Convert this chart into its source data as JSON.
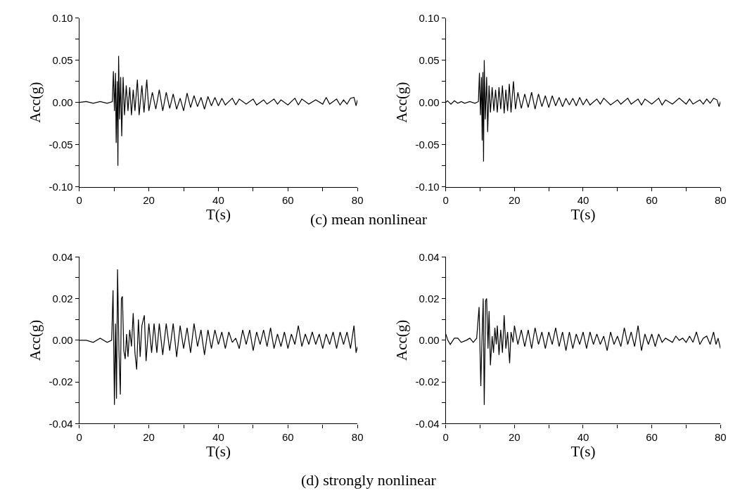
{
  "chart_data": [
    {
      "type": "line",
      "xlabel": "T(s)",
      "ylabel": "Acc(g)",
      "annotations": [
        "(c) mean nonlinear"
      ],
      "xlim": [
        0,
        80
      ],
      "ylim": [
        -0.1,
        0.1
      ],
      "marker": "none",
      "line_style": "solid",
      "xticks": [
        0,
        {
          "value": 10,
          "label": null
        },
        20,
        {
          "value": 30,
          "label": null
        },
        40,
        {
          "value": 50,
          "label": null
        },
        60,
        {
          "value": 70,
          "label": null
        },
        80
      ],
      "yticks": [
        {
          "value": -0.1,
          "label": "-0.10"
        },
        {
          "value": -0.075,
          "label": null
        },
        {
          "value": -0.05,
          "label": "-0.05"
        },
        {
          "value": -0.025,
          "label": null
        },
        {
          "value": 0,
          "label": "0.00"
        },
        {
          "value": 0.025,
          "label": null
        },
        {
          "value": 0.05,
          "label": "0.05"
        },
        {
          "value": 0.075,
          "label": null
        },
        {
          "value": 0.1,
          "label": "0.10"
        }
      ],
      "series": [
        {
          "color": "#000000",
          "x": [
            0,
            2,
            4,
            6,
            8,
            9.5,
            9.8,
            10.1,
            10.4,
            10.6,
            10.9,
            11.1,
            11.3,
            11.6,
            11.9,
            12.2,
            12.6,
            13,
            13.5,
            14,
            14.5,
            15,
            15.5,
            16,
            16.7,
            17.2,
            18,
            18.6,
            19.4,
            20,
            21,
            22,
            23,
            24,
            25,
            26,
            27,
            28,
            29,
            30,
            31,
            32,
            33,
            34,
            35,
            36,
            37,
            38,
            39,
            40,
            41,
            42,
            44,
            45,
            46,
            48,
            50,
            51,
            53,
            54,
            56,
            57,
            58,
            60,
            62,
            63,
            64,
            66,
            68,
            70,
            71,
            72,
            74,
            75,
            76,
            77,
            78,
            79,
            79.6,
            80
          ],
          "values": [
            0,
            0.001,
            -0.001,
            0.001,
            -0.001,
            0.001,
            0.037,
            -0.01,
            0.035,
            -0.048,
            0.025,
            -0.075,
            0.055,
            -0.02,
            0.03,
            -0.04,
            0.03,
            -0.015,
            0.02,
            -0.01,
            0.018,
            -0.015,
            0.015,
            -0.01,
            0.027,
            -0.015,
            0.02,
            -0.012,
            0.027,
            -0.01,
            0.012,
            -0.008,
            0.015,
            -0.01,
            0.012,
            -0.007,
            0.01,
            -0.008,
            0.005,
            -0.01,
            0.011,
            -0.006,
            0.008,
            -0.005,
            0.006,
            -0.008,
            0.007,
            -0.004,
            0.006,
            -0.004,
            0.005,
            -0.003,
            0.005,
            -0.003,
            0.004,
            -0.002,
            0.004,
            -0.003,
            0.003,
            -0.002,
            0.004,
            -0.002,
            0.003,
            -0.003,
            0.005,
            -0.003,
            0.004,
            -0.002,
            0.003,
            -0.002,
            0.006,
            -0.002,
            0.004,
            -0.003,
            0.003,
            -0.002,
            0.005,
            0.006,
            -0.004,
            0.003
          ]
        }
      ]
    },
    {
      "type": "line",
      "xlabel": "T(s)",
      "ylabel": "Acc(g)",
      "xlim": [
        0,
        80
      ],
      "ylim": [
        -0.1,
        0.1
      ],
      "marker": "none",
      "line_style": "solid",
      "xticks": [
        0,
        {
          "value": 10,
          "label": null
        },
        20,
        {
          "value": 30,
          "label": null
        },
        40,
        {
          "value": 50,
          "label": null
        },
        60,
        {
          "value": 70,
          "label": null
        },
        80
      ],
      "yticks": [
        {
          "value": -0.1,
          "label": "-0.10"
        },
        {
          "value": -0.075,
          "label": null
        },
        {
          "value": -0.05,
          "label": "-0.05"
        },
        {
          "value": -0.025,
          "label": null
        },
        {
          "value": 0,
          "label": "0.00"
        },
        {
          "value": 0.025,
          "label": null
        },
        {
          "value": 0.05,
          "label": "0.05"
        },
        {
          "value": 0.075,
          "label": null
        },
        {
          "value": 0.1,
          "label": "0.10"
        }
      ],
      "series": [
        {
          "color": "#000000",
          "x": [
            0,
            0.5,
            1.5,
            2.5,
            3.5,
            4.5,
            5.5,
            7,
            8.5,
            9.5,
            9.8,
            10.1,
            10.4,
            10.6,
            10.8,
            11,
            11.2,
            11.5,
            11.9,
            12.2,
            12.6,
            13,
            13.5,
            14,
            14.5,
            15,
            15.5,
            16,
            16.5,
            17,
            17.5,
            18,
            18.5,
            19,
            19.7,
            20.3,
            21,
            22,
            23,
            24,
            25,
            26,
            27,
            28,
            29,
            30,
            31,
            32,
            33,
            34,
            35,
            36,
            37,
            38,
            39,
            40,
            41,
            42,
            44,
            45,
            46,
            48,
            50,
            51,
            53,
            54,
            56,
            57,
            58,
            60,
            62,
            63,
            64,
            66,
            68,
            70,
            71,
            72,
            74,
            75,
            76,
            77,
            78,
            79,
            79.6,
            80
          ],
          "values": [
            0,
            0.002,
            -0.002,
            0.002,
            -0.001,
            0.001,
            -0.001,
            0.001,
            -0.001,
            0.001,
            0.035,
            -0.015,
            0.03,
            -0.045,
            0.036,
            -0.07,
            0.05,
            -0.02,
            0.03,
            -0.035,
            0.02,
            -0.012,
            0.018,
            -0.01,
            0.015,
            -0.012,
            0.018,
            -0.008,
            0.02,
            -0.013,
            0.015,
            -0.01,
            0.022,
            -0.012,
            0.025,
            -0.008,
            0.012,
            -0.007,
            0.01,
            -0.006,
            0.012,
            -0.008,
            0.01,
            -0.005,
            0.008,
            -0.006,
            0.008,
            -0.004,
            0.006,
            -0.005,
            0.005,
            -0.003,
            0.005,
            -0.004,
            0.006,
            -0.003,
            0.004,
            -0.003,
            0.004,
            -0.002,
            0.005,
            -0.003,
            0.003,
            -0.002,
            0.005,
            -0.002,
            0.004,
            -0.003,
            0.004,
            -0.002,
            0.005,
            -0.003,
            0.003,
            -0.002,
            0.005,
            -0.002,
            0.004,
            -0.002,
            0.003,
            -0.002,
            0.004,
            -0.001,
            0.005,
            0.003,
            -0.005,
            0.001
          ]
        }
      ]
    },
    {
      "type": "line",
      "xlabel": "T(s)",
      "ylabel": "Acc(g)",
      "annotations": [
        "(d) strongly nonlinear"
      ],
      "xlim": [
        0,
        80
      ],
      "ylim": [
        -0.04,
        0.04
      ],
      "marker": "none",
      "line_style": "solid",
      "xticks": [
        0,
        {
          "value": 10,
          "label": null
        },
        20,
        {
          "value": 30,
          "label": null
        },
        40,
        {
          "value": 50,
          "label": null
        },
        60,
        {
          "value": 70,
          "label": null
        },
        80
      ],
      "yticks": [
        {
          "value": -0.04,
          "label": "-0.04"
        },
        {
          "value": -0.03,
          "label": null
        },
        {
          "value": -0.02,
          "label": "-0.02"
        },
        {
          "value": -0.01,
          "label": null
        },
        {
          "value": 0,
          "label": "0.00"
        },
        {
          "value": 0.01,
          "label": null
        },
        {
          "value": 0.02,
          "label": "0.02"
        },
        {
          "value": 0.03,
          "label": null
        },
        {
          "value": 0.04,
          "label": "0.04"
        }
      ],
      "series": [
        {
          "color": "#000000",
          "x": [
            0,
            2,
            4,
            6,
            8,
            9.3,
            9.7,
            10.1,
            10.4,
            10.7,
            11,
            11.4,
            11.8,
            12.1,
            12.4,
            12.8,
            13.2,
            13.6,
            14,
            14.5,
            15,
            15.5,
            16,
            16.5,
            17,
            17.5,
            18,
            18.7,
            19.2,
            20,
            20.8,
            21.5,
            22.3,
            23,
            24,
            25,
            26,
            27,
            28,
            29,
            30,
            31,
            32,
            33,
            34,
            35,
            36,
            37,
            38,
            39,
            40,
            41,
            42,
            43,
            44,
            45,
            46,
            47,
            48,
            49,
            50,
            51,
            52,
            53,
            54,
            55,
            56,
            57,
            58,
            59,
            60,
            61,
            62,
            63,
            64,
            65,
            66,
            67,
            68,
            69,
            70,
            71,
            72,
            73,
            74,
            75,
            76,
            77,
            78,
            79,
            79.6,
            80
          ],
          "values": [
            0,
            0,
            -0.001,
            0.001,
            -0.001,
            0,
            0.024,
            -0.031,
            0.008,
            -0.028,
            0.034,
            -0.005,
            -0.026,
            0.02,
            0.021,
            -0.005,
            -0.009,
            0.003,
            -0.008,
            0.005,
            -0.003,
            0.013,
            -0.006,
            -0.014,
            0.01,
            -0.008,
            0.007,
            0.012,
            -0.01,
            0.008,
            -0.006,
            0.008,
            -0.006,
            0.008,
            -0.007,
            0.008,
            -0.005,
            0.008,
            -0.008,
            0.007,
            -0.004,
            0.006,
            -0.006,
            0.008,
            -0.003,
            0.005,
            -0.007,
            0.005,
            -0.004,
            0.005,
            -0.002,
            0.004,
            -0.004,
            0.004,
            -0.001,
            0.001,
            -0.004,
            0.005,
            -0.002,
            0.005,
            -0.005,
            0.004,
            -0.002,
            0.005,
            -0.003,
            0.006,
            -0.004,
            0.003,
            -0.003,
            0.004,
            -0.004,
            0.003,
            -0.002,
            0.007,
            -0.003,
            0.003,
            -0.002,
            0.004,
            -0.002,
            0.003,
            -0.004,
            0.003,
            -0.002,
            0.004,
            -0.004,
            0.004,
            -0.002,
            0.004,
            -0.004,
            0.007,
            -0.006,
            -0.003
          ]
        }
      ]
    },
    {
      "type": "line",
      "xlabel": "T(s)",
      "ylabel": "Acc(g)",
      "xlim": [
        0,
        80
      ],
      "ylim": [
        -0.04,
        0.04
      ],
      "marker": "none",
      "line_style": "solid",
      "xticks": [
        0,
        {
          "value": 10,
          "label": null
        },
        20,
        {
          "value": 30,
          "label": null
        },
        40,
        {
          "value": 50,
          "label": null
        },
        60,
        {
          "value": 70,
          "label": null
        },
        80
      ],
      "yticks": [
        {
          "value": -0.04,
          "label": "-0.04"
        },
        {
          "value": -0.03,
          "label": null
        },
        {
          "value": -0.02,
          "label": "-0.02"
        },
        {
          "value": -0.01,
          "label": null
        },
        {
          "value": 0,
          "label": "0.00"
        },
        {
          "value": 0.01,
          "label": null
        },
        {
          "value": 0.02,
          "label": "0.02"
        },
        {
          "value": 0.03,
          "label": null
        },
        {
          "value": 0.04,
          "label": "0.04"
        }
      ],
      "series": [
        {
          "color": "#000000",
          "x": [
            0,
            0.6,
            1.3,
            2.5,
            3.5,
            4.5,
            6,
            7,
            8,
            9,
            9.7,
            10.2,
            10.5,
            10.9,
            11.2,
            11.6,
            11.9,
            12.3,
            12.6,
            13,
            13.5,
            13.9,
            14.3,
            14.7,
            15,
            15.5,
            16,
            16.5,
            17,
            17.5,
            18,
            18.6,
            19,
            19.6,
            20,
            21,
            22,
            23,
            24,
            25,
            26,
            27,
            28,
            29,
            30,
            31,
            32,
            33,
            34,
            35,
            36,
            37,
            38,
            39,
            40,
            41,
            42,
            43,
            44,
            45,
            46,
            47,
            48,
            49,
            50,
            51,
            52,
            53,
            54,
            55,
            56,
            57,
            58,
            59,
            60,
            61,
            62,
            63,
            64,
            66,
            67,
            68,
            69,
            70,
            71,
            72,
            73,
            74,
            75,
            76,
            77,
            78,
            78.7,
            79.3,
            80
          ],
          "values": [
            0.003,
            0,
            -0.002,
            0.001,
            0.001,
            -0.001,
            0,
            0.001,
            -0.001,
            0.001,
            0.016,
            -0.022,
            -0.002,
            0.02,
            -0.031,
            0.019,
            0.02,
            -0.004,
            0.014,
            -0.012,
            0.002,
            -0.006,
            0.006,
            -0.002,
            0.007,
            -0.007,
            0.005,
            -0.006,
            0.012,
            -0.004,
            0.004,
            -0.011,
            0.004,
            -0.001,
            0.007,
            -0.002,
            0.005,
            -0.003,
            0.005,
            -0.004,
            0.006,
            -0.002,
            0.004,
            -0.004,
            0.004,
            -0.002,
            0.006,
            -0.003,
            0.004,
            -0.005,
            0.004,
            -0.004,
            0.003,
            -0.002,
            0.004,
            -0.004,
            0.004,
            -0.002,
            0.003,
            -0.002,
            0.002,
            -0.005,
            0.004,
            -0.002,
            0.002,
            -0.003,
            0.006,
            -0.002,
            0.004,
            -0.003,
            0.007,
            -0.005,
            0.003,
            -0.002,
            0.003,
            -0.003,
            0.003,
            -0.001,
            0.001,
            -0.001,
            0.002,
            0,
            0.001,
            -0.001,
            0.002,
            -0.001,
            0.004,
            -0.002,
            0.001,
            0.002,
            -0.002,
            0.004,
            -0.002,
            0.001,
            -0.004
          ]
        }
      ]
    }
  ]
}
